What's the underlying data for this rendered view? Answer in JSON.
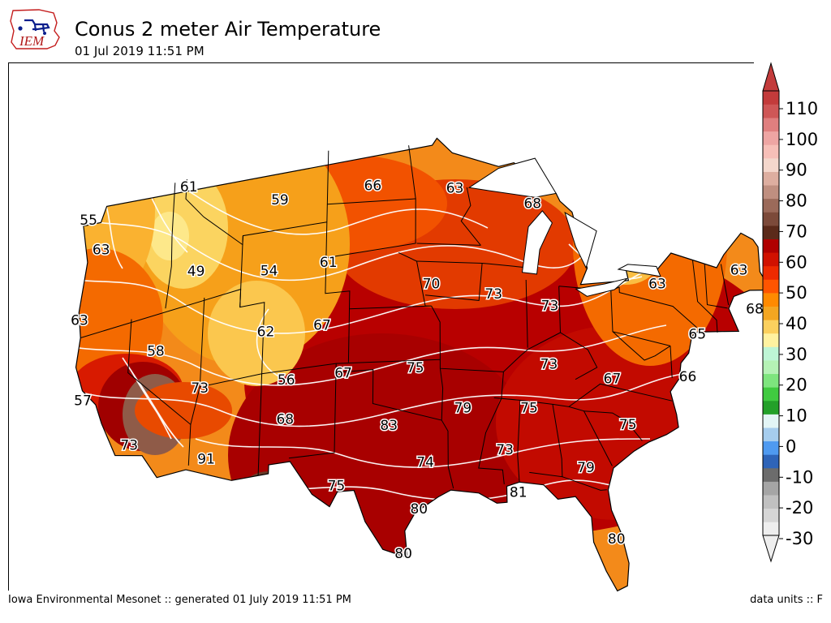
{
  "header": {
    "title": "Conus 2 meter Air Temperature",
    "subtitle": "01 Jul 2019 11:51 PM",
    "logo_text": "IEM"
  },
  "footer": {
    "left": "Iowa Environmental Mesonet :: generated 01 July 2019 11:51 PM",
    "right": "data units :: F"
  },
  "map": {
    "labels": [
      {
        "v": "55",
        "lon": -124.3,
        "lat": 48.6
      },
      {
        "v": "61",
        "lon": -115.8,
        "lat": 48.5
      },
      {
        "v": "63",
        "lon": -123.0,
        "lat": 46.6
      },
      {
        "v": "59",
        "lon": -108.0,
        "lat": 46.6
      },
      {
        "v": "66",
        "lon": -100.2,
        "lat": 46.8
      },
      {
        "v": "63",
        "lon": -93.3,
        "lat": 46.6
      },
      {
        "v": "68",
        "lon": -86.8,
        "lat": 46.1
      },
      {
        "v": "63",
        "lon": -69.6,
        "lat": 45.3
      },
      {
        "v": "63",
        "lon": -124.4,
        "lat": 43.0
      },
      {
        "v": "49",
        "lon": -114.8,
        "lat": 43.6
      },
      {
        "v": "54",
        "lon": -108.7,
        "lat": 42.7
      },
      {
        "v": "61",
        "lon": -103.8,
        "lat": 42.7
      },
      {
        "v": "68",
        "lon": -68.5,
        "lat": 43.4
      },
      {
        "v": "63",
        "lon": -76.6,
        "lat": 43.0
      },
      {
        "v": "70",
        "lon": -95.3,
        "lat": 41.2
      },
      {
        "v": "73",
        "lon": -90.2,
        "lat": 40.8
      },
      {
        "v": "73",
        "lon": -85.6,
        "lat": 40.5
      },
      {
        "v": "65",
        "lon": -73.5,
        "lat": 40.8
      },
      {
        "v": "57",
        "lon": -123.6,
        "lat": 38.3
      },
      {
        "v": "58",
        "lon": -117.8,
        "lat": 39.7
      },
      {
        "v": "62",
        "lon": -108.8,
        "lat": 39.3
      },
      {
        "v": "67",
        "lon": -104.2,
        "lat": 39.2
      },
      {
        "v": "66",
        "lon": -74.5,
        "lat": 38.2
      },
      {
        "v": "73",
        "lon": -85.8,
        "lat": 37.2
      },
      {
        "v": "67",
        "lon": -80.7,
        "lat": 37.0
      },
      {
        "v": "73",
        "lon": -114.0,
        "lat": 36.9
      },
      {
        "v": "56",
        "lon": -107.0,
        "lat": 36.4
      },
      {
        "v": "67",
        "lon": -102.4,
        "lat": 36.4
      },
      {
        "v": "75",
        "lon": -96.6,
        "lat": 36.5
      },
      {
        "v": "73",
        "lon": -119.5,
        "lat": 34.8
      },
      {
        "v": "68",
        "lon": -107.0,
        "lat": 34.2
      },
      {
        "v": "79",
        "lon": -92.8,
        "lat": 34.3
      },
      {
        "v": "75",
        "lon": -87.5,
        "lat": 34.6
      },
      {
        "v": "75",
        "lon": -79.6,
        "lat": 34.6
      },
      {
        "v": "91",
        "lon": -113.2,
        "lat": 32.8
      },
      {
        "v": "83",
        "lon": -98.7,
        "lat": 33.3
      },
      {
        "v": "73",
        "lon": -89.5,
        "lat": 32.1
      },
      {
        "v": "79",
        "lon": -83.1,
        "lat": 31.7
      },
      {
        "v": "74",
        "lon": -95.8,
        "lat": 31.2
      },
      {
        "v": "75",
        "lon": -102.8,
        "lat": 30.1
      },
      {
        "v": "81",
        "lon": -88.5,
        "lat": 29.8
      },
      {
        "v": "80",
        "lon": -96.3,
        "lat": 28.6
      },
      {
        "v": "80",
        "lon": -80.9,
        "lat": 28.0
      },
      {
        "v": "80",
        "lon": -97.5,
        "lat": 26.1
      }
    ]
  },
  "colorbar": {
    "ticks": [
      "110",
      "100",
      "90",
      "80",
      "70",
      "60",
      "50",
      "40",
      "30",
      "20",
      "10",
      "0",
      "-10",
      "-20",
      "-30"
    ],
    "colors": [
      "#eeeeee",
      "#d6d6d6",
      "#c0c0c0",
      "#a5a5a5",
      "#6c6c6c",
      "#2e64b8",
      "#4f9af0",
      "#a6cdee",
      "#e3f5f6",
      "#23a029",
      "#40ca40",
      "#7ee57e",
      "#b5f2b5",
      "#bef5d5",
      "#fff2a0",
      "#fbd05e",
      "#f4a621",
      "#ff8a00",
      "#ff5500",
      "#ee2a00",
      "#d11100",
      "#b00000",
      "#5b2a1a",
      "#7c4a3a",
      "#9b6a5a",
      "#bf8f80",
      "#ddaea0",
      "#f4d7cc",
      "#f7bfb8",
      "#eea5a3",
      "#e07f7f",
      "#cf5757",
      "#c33b3b"
    ]
  },
  "colors": {
    "land_base": "#f38a1a",
    "outside": "#ffffff",
    "border": "#000000",
    "contour": "#ffffff"
  }
}
